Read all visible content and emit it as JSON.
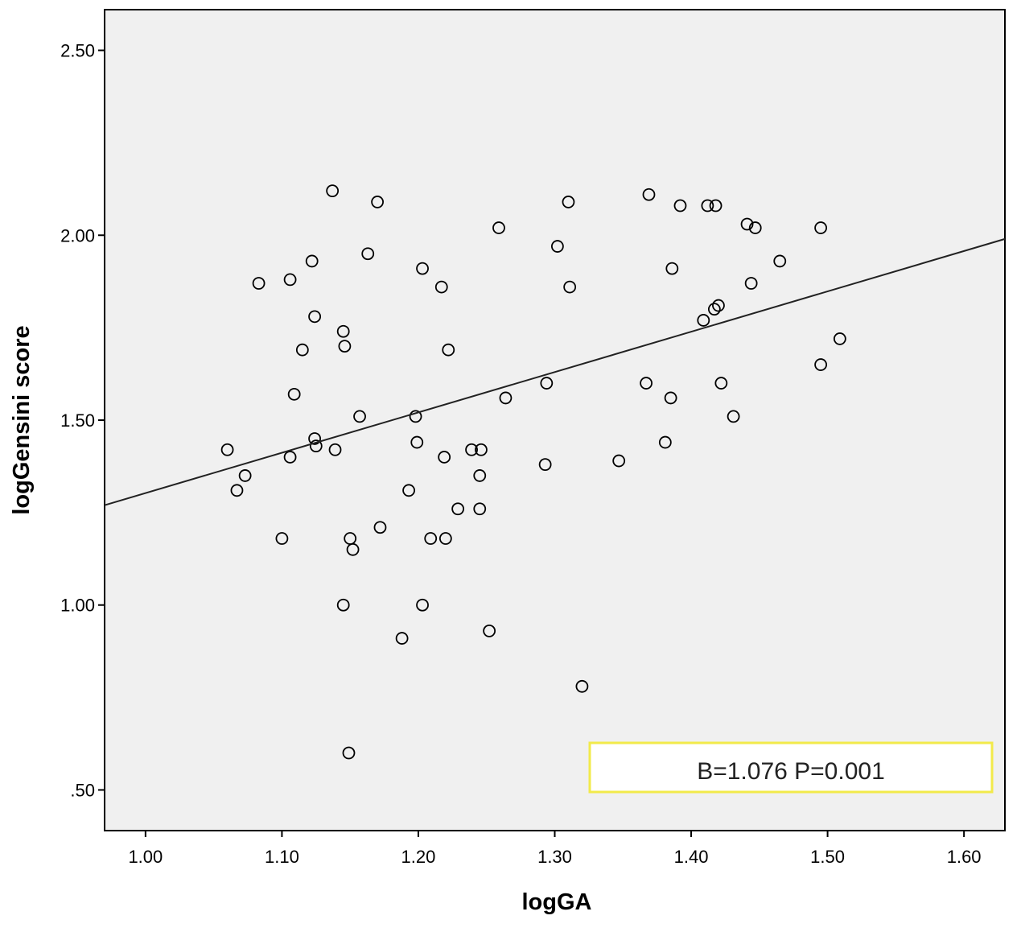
{
  "chart_data": {
    "type": "scatter",
    "title": "",
    "xlabel": "logGA",
    "ylabel": "logGensini score",
    "xlim": [
      0.97,
      1.63
    ],
    "ylim": [
      0.39,
      2.61
    ],
    "xticks": [
      "1.00",
      "1.10",
      "1.20",
      "1.30",
      "1.40",
      "1.50",
      "1.60"
    ],
    "yticks": [
      ".50",
      "1.00",
      "1.50",
      "2.00",
      "2.50"
    ],
    "grid": false,
    "legend": null,
    "annotation": "B=1.076  P=0.001",
    "fit_line": {
      "x": [
        0.97,
        1.63
      ],
      "y": [
        1.27,
        1.99
      ]
    },
    "series": [
      {
        "points": [
          [
            1.137,
            2.12
          ],
          [
            1.17,
            2.09
          ],
          [
            1.31,
            2.09
          ],
          [
            1.369,
            2.11
          ],
          [
            1.392,
            2.08
          ],
          [
            1.412,
            2.08
          ],
          [
            1.418,
            2.08
          ],
          [
            1.441,
            2.03
          ],
          [
            1.447,
            2.02
          ],
          [
            1.495,
            2.02
          ],
          [
            1.259,
            2.02
          ],
          [
            1.302,
            1.97
          ],
          [
            1.163,
            1.95
          ],
          [
            1.122,
            1.93
          ],
          [
            1.203,
            1.91
          ],
          [
            1.386,
            1.91
          ],
          [
            1.465,
            1.93
          ],
          [
            1.083,
            1.87
          ],
          [
            1.106,
            1.88
          ],
          [
            1.217,
            1.86
          ],
          [
            1.311,
            1.86
          ],
          [
            1.444,
            1.87
          ],
          [
            1.124,
            1.78
          ],
          [
            1.42,
            1.81
          ],
          [
            1.417,
            1.8
          ],
          [
            1.409,
            1.77
          ],
          [
            1.145,
            1.74
          ],
          [
            1.146,
            1.7
          ],
          [
            1.115,
            1.69
          ],
          [
            1.222,
            1.69
          ],
          [
            1.509,
            1.72
          ],
          [
            1.495,
            1.65
          ],
          [
            1.109,
            1.57
          ],
          [
            1.264,
            1.56
          ],
          [
            1.294,
            1.6
          ],
          [
            1.367,
            1.6
          ],
          [
            1.422,
            1.6
          ],
          [
            1.385,
            1.56
          ],
          [
            1.157,
            1.51
          ],
          [
            1.198,
            1.51
          ],
          [
            1.431,
            1.51
          ],
          [
            1.124,
            1.45
          ],
          [
            1.125,
            1.43
          ],
          [
            1.06,
            1.42
          ],
          [
            1.139,
            1.42
          ],
          [
            1.199,
            1.44
          ],
          [
            1.239,
            1.42
          ],
          [
            1.246,
            1.42
          ],
          [
            1.381,
            1.44
          ],
          [
            1.106,
            1.4
          ],
          [
            1.219,
            1.4
          ],
          [
            1.347,
            1.39
          ],
          [
            1.293,
            1.38
          ],
          [
            1.073,
            1.35
          ],
          [
            1.245,
            1.35
          ],
          [
            1.067,
            1.31
          ],
          [
            1.193,
            1.31
          ],
          [
            1.229,
            1.26
          ],
          [
            1.245,
            1.26
          ],
          [
            1.172,
            1.21
          ],
          [
            1.1,
            1.18
          ],
          [
            1.15,
            1.18
          ],
          [
            1.209,
            1.18
          ],
          [
            1.22,
            1.18
          ],
          [
            1.152,
            1.15
          ],
          [
            1.145,
            1.0
          ],
          [
            1.203,
            1.0
          ],
          [
            1.252,
            0.93
          ],
          [
            1.188,
            0.91
          ],
          [
            1.32,
            0.78
          ],
          [
            1.149,
            0.6
          ]
        ]
      }
    ]
  }
}
